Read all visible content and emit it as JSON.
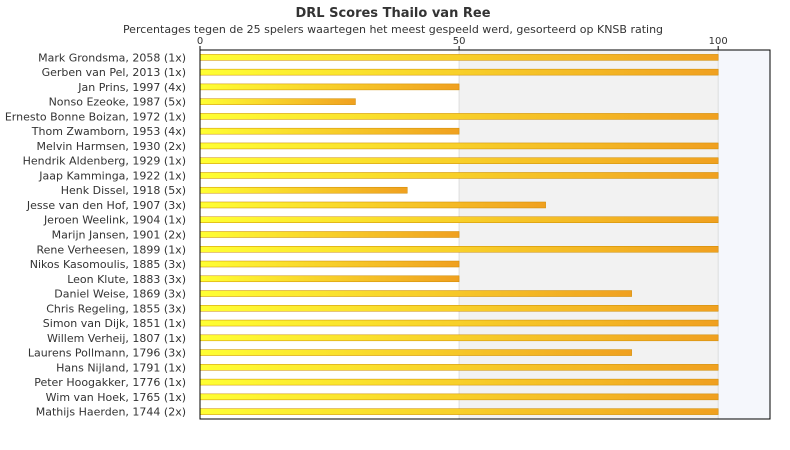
{
  "chart_data": {
    "type": "bar",
    "orientation": "horizontal",
    "title": "DRL Scores Thailo van Ree",
    "subtitle": "Percentages tegen de 25 spelers waartegen het meest gespeeld werd, gesorteerd op KNSB rating",
    "xlim": [
      0,
      110
    ],
    "xticks": [
      0,
      50,
      100
    ],
    "grid": true,
    "legend": "none",
    "categories": [
      "Mark Grondsma, 2058 (1x)",
      "Gerben van Pel, 2013 (1x)",
      "Jan Prins, 1997 (4x)",
      "Nonso Ezeoke, 1987 (5x)",
      "Ernesto Bonne Boizan, 1972 (1x)",
      "Thom Zwamborn, 1953 (4x)",
      "Melvin Harmsen, 1930 (2x)",
      "Hendrik Aldenberg, 1929 (1x)",
      "Jaap Kamminga, 1922 (1x)",
      "Henk Dissel, 1918 (5x)",
      "Jesse van den Hof, 1907 (3x)",
      "Jeroen Weelink, 1904 (1x)",
      "Marijn Jansen, 1901 (2x)",
      "Rene Verheesen, 1899 (1x)",
      "Nikos Kasomoulis, 1885 (3x)",
      "Leon Klute, 1883 (3x)",
      "Daniel Weise, 1869 (3x)",
      "Chris Regeling, 1855 (3x)",
      "Simon van Dijk, 1851 (1x)",
      "Willem Verheij, 1807 (1x)",
      "Laurens Pollmann, 1796 (3x)",
      "Hans Nijland, 1791 (1x)",
      "Peter Hoogakker, 1776 (1x)",
      "Wim van Hoek, 1765 (1x)",
      "Mathijs Haerden, 1744 (2x)"
    ],
    "values": [
      100,
      100,
      50,
      30,
      100,
      50,
      100,
      100,
      100,
      40,
      66.7,
      100,
      50,
      100,
      50,
      50,
      83.3,
      100,
      100,
      100,
      83.3,
      100,
      100,
      100,
      100
    ],
    "colors": {
      "bar_start": "#ffff33",
      "bar_end": "#f0a020",
      "bar_border": "#cc8a00",
      "band_light": "#ffffff",
      "band_gray": "#f2f2f2",
      "band_blue": "#f5f7fc",
      "grid": "#dddddd",
      "axis": "#000000"
    }
  }
}
